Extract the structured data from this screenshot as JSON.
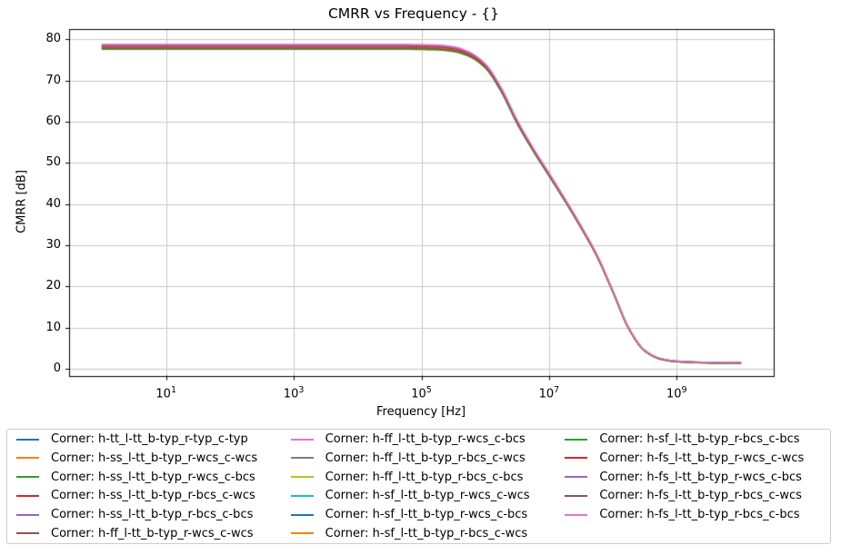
{
  "chart_data": {
    "type": "line",
    "title": "CMRR vs Frequency - {}",
    "xlabel": "Frequency [Hz]",
    "ylabel": "CMRR [dB]",
    "x_scale": "log",
    "x_range_exponents": [
      -0.52,
      10.52
    ],
    "ylim": [
      -1.66,
      82.63
    ],
    "x_major_tick_exponents": [
      1,
      3,
      5,
      7,
      9
    ],
    "x_tick_base": "10",
    "y_ticks": [
      0,
      10,
      20,
      30,
      40,
      50,
      60,
      70,
      80
    ],
    "grid": true,
    "legend_position": "below-chart",
    "legend_columns": 3,
    "base_curve": {
      "log10_freq_hz": [
        0,
        1,
        2,
        3,
        4,
        4.75,
        5.0,
        5.25,
        5.5,
        5.75,
        6.0,
        6.25,
        6.5,
        6.75,
        7.0,
        7.25,
        7.5,
        7.75,
        8.0,
        8.25,
        8.5,
        8.75,
        9.0,
        9.5,
        10.0
      ],
      "cmrr_db": [
        78.2,
        78.2,
        78.2,
        78.2,
        78.2,
        78.2,
        78.15,
        78.05,
        77.65,
        76.4,
        73.6,
        67.8,
        60.0,
        53.3,
        47.2,
        41.0,
        34.5,
        27.5,
        18.8,
        9.8,
        4.4,
        2.4,
        1.8,
        1.5,
        1.45
      ],
      "flat_level_db": 78.2,
      "floor_level_db": 1.45
    },
    "spread": {
      "full_until_log10f": 5.5,
      "taper_until_log10f": 8.5,
      "min_factor": 0.15
    },
    "series": [
      {
        "name": "Corner: h-tt_l-tt_b-typ_r-typ_c-typ",
        "color": "#1f77b4",
        "offset_db": 0.0
      },
      {
        "name": "Corner: h-ss_l-tt_b-typ_r-wcs_c-wcs",
        "color": "#ff7f0e",
        "offset_db": -0.2
      },
      {
        "name": "Corner: h-ss_l-tt_b-typ_r-wcs_c-bcs",
        "color": "#2ca02c",
        "offset_db": -0.45
      },
      {
        "name": "Corner: h-ss_l-tt_b-typ_r-bcs_c-wcs",
        "color": "#d62728",
        "offset_db": -0.1
      },
      {
        "name": "Corner: h-ss_l-tt_b-typ_r-bcs_c-bcs",
        "color": "#9467bd",
        "offset_db": 0.15
      },
      {
        "name": "Corner: h-ff_l-tt_b-typ_r-wcs_c-wcs",
        "color": "#8c564b",
        "offset_db": -0.3
      },
      {
        "name": "Corner: h-ff_l-tt_b-typ_r-wcs_c-bcs",
        "color": "#e377c2",
        "offset_db": 0.45
      },
      {
        "name": "Corner: h-ff_l-tt_b-typ_r-bcs_c-wcs",
        "color": "#7f7f7f",
        "offset_db": -0.25
      },
      {
        "name": "Corner: h-ff_l-tt_b-typ_r-bcs_c-bcs",
        "color": "#bcbd22",
        "offset_db": -0.55
      },
      {
        "name": "Corner: h-sf_l-tt_b-typ_r-wcs_c-wcs",
        "color": "#17becf",
        "offset_db": 0.3
      },
      {
        "name": "Corner: h-sf_l-tt_b-typ_r-wcs_c-bcs",
        "color": "#1f77b4",
        "offset_db": 0.2
      },
      {
        "name": "Corner: h-sf_l-tt_b-typ_r-bcs_c-wcs",
        "color": "#ff7f0e",
        "offset_db": -0.05
      },
      {
        "name": "Corner: h-sf_l-tt_b-typ_r-bcs_c-bcs",
        "color": "#2ca02c",
        "offset_db": -0.6
      },
      {
        "name": "Corner: h-fs_l-tt_b-typ_r-wcs_c-wcs",
        "color": "#d62728",
        "offset_db": 0.1
      },
      {
        "name": "Corner: h-fs_l-tt_b-typ_r-wcs_c-bcs",
        "color": "#9467bd",
        "offset_db": 0.35
      },
      {
        "name": "Corner: h-fs_l-tt_b-typ_r-bcs_c-wcs",
        "color": "#8c564b",
        "offset_db": -0.35
      },
      {
        "name": "Corner: h-fs_l-tt_b-typ_r-bcs_c-bcs",
        "color": "#e377c2",
        "offset_db": 0.6
      }
    ]
  },
  "colors": {
    "background": "#ffffff",
    "grid": "#c8c8c8",
    "spine": "#000000",
    "tick_text": "#000000",
    "legend_border": "#cccccc"
  }
}
